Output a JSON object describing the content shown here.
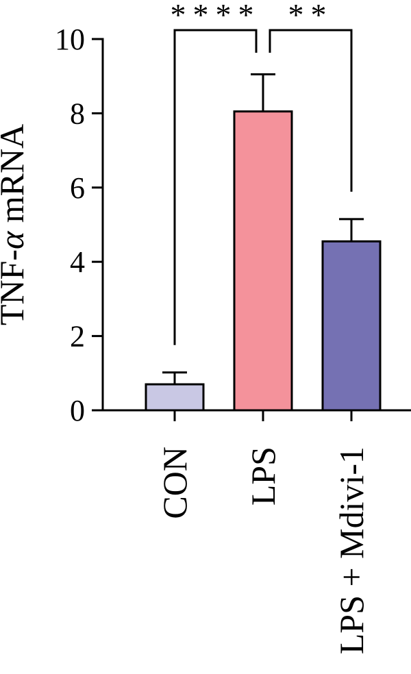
{
  "chart_data": {
    "type": "bar",
    "ylabel": "TNF-α mRNA",
    "ylabel_parts": [
      "TNF-",
      "α",
      " mRNA"
    ],
    "ylim": [
      0,
      10
    ],
    "yticks": [
      0,
      2,
      4,
      6,
      8,
      10
    ],
    "categories": [
      "CON",
      "LPS",
      "LPS + Mdivi-1"
    ],
    "values": [
      0.7,
      8.05,
      4.55
    ],
    "errors": [
      0.32,
      1.0,
      0.6
    ],
    "colors": [
      "#c9c8e4",
      "#f4929b",
      "#7571b3"
    ],
    "significance": [
      {
        "from": 0,
        "to": 1,
        "label": "****"
      },
      {
        "from": 1,
        "to": 2,
        "label": "**"
      }
    ],
    "grid": false
  }
}
